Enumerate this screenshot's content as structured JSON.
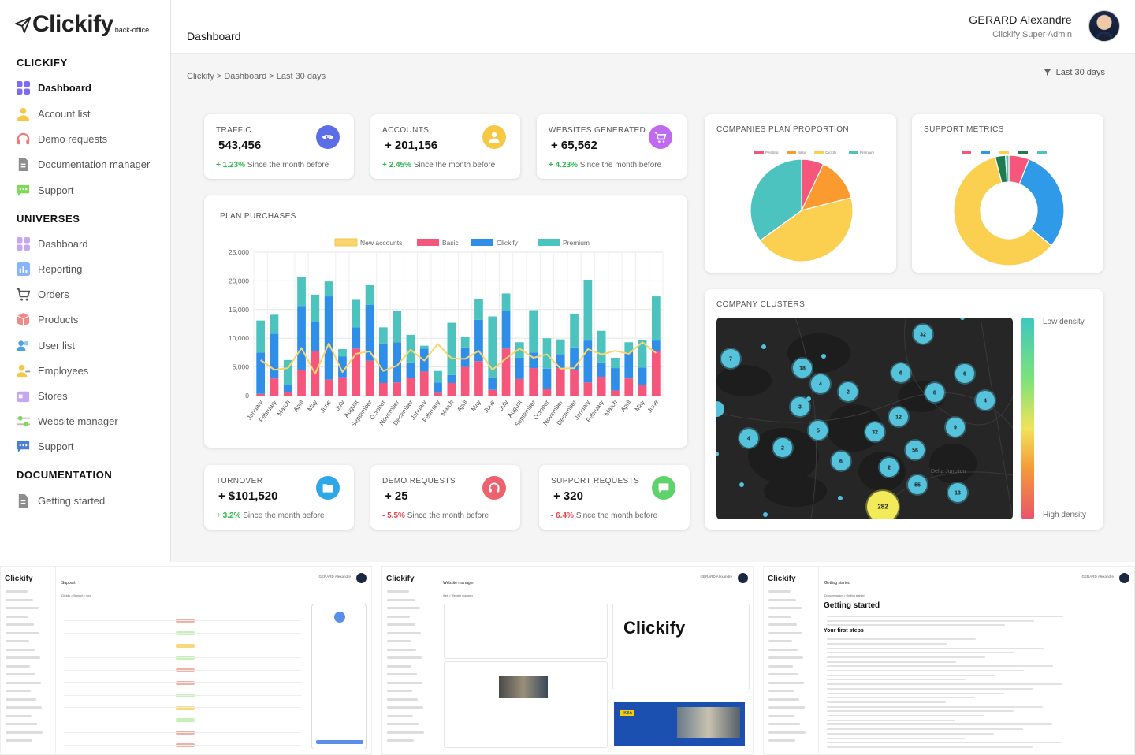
{
  "app": {
    "logo": "Clickify",
    "logo_sub": "back-office"
  },
  "header": {
    "page_title": "Dashboard",
    "user_name": "GERARD Alexandre",
    "user_role": "Clickify Super Admin"
  },
  "breadcrumb": "Clickify > Dashboard > Last 30 days",
  "filter_label": "Last 30 days",
  "sidebar": {
    "sections": [
      {
        "title": "CLICKIFY",
        "items": [
          {
            "label": "Dashboard",
            "icon": "grid-icon",
            "color": "#7c6df0"
          },
          {
            "label": "Account list",
            "icon": "user-icon",
            "color": "#f6c945"
          },
          {
            "label": "Demo requests",
            "icon": "headset-icon",
            "color": "#f07b7b"
          },
          {
            "label": "Documentation manager",
            "icon": "document-icon",
            "color": "#8d8d8d"
          },
          {
            "label": "Support",
            "icon": "chat-icon",
            "color": "#7ed957"
          }
        ]
      },
      {
        "title": "UNIVERSES",
        "items": [
          {
            "label": "Dashboard",
            "icon": "grid-icon",
            "color": "#c5a7f0"
          },
          {
            "label": "Reporting",
            "icon": "bar-chart-icon",
            "color": "#8ab4f8"
          },
          {
            "label": "Orders",
            "icon": "cart-icon",
            "color": "#555555"
          },
          {
            "label": "Products",
            "icon": "box-icon",
            "color": "#f08a8a"
          },
          {
            "label": "User list",
            "icon": "users-icon",
            "color": "#4aa3df"
          },
          {
            "label": "Employees",
            "icon": "employee-icon",
            "color": "#f6c945"
          },
          {
            "label": "Stores",
            "icon": "store-icon",
            "color": "#c5a7f0"
          },
          {
            "label": "Website manager",
            "icon": "sliders-icon",
            "color": "#7ed957"
          },
          {
            "label": "Support",
            "icon": "chat-icon",
            "color": "#4a7fd4"
          }
        ]
      },
      {
        "title": "DOCUMENTATION",
        "items": [
          {
            "label": "Getting started",
            "icon": "document-icon",
            "color": "#8d8d8d"
          }
        ]
      }
    ]
  },
  "kpis_top": [
    {
      "label": "TRAFFIC",
      "value": "543,456",
      "change": "+ 1.23%",
      "since": "Since the month before",
      "icon": "eye-icon",
      "color": "#5b6ee8",
      "trend": "up"
    },
    {
      "label": "ACCOUNTS",
      "value": "+ 201,156",
      "change": "+ 2.45%",
      "since": "Since the month before",
      "icon": "user-icon",
      "color": "#f6c945",
      "trend": "up"
    },
    {
      "label": "WEBSITES GENERATED",
      "value": "+ 65,562",
      "change": "+ 4.23%",
      "since": "Since the month before",
      "icon": "cart-icon",
      "color": "#c06af0",
      "trend": "up"
    }
  ],
  "kpis_bottom": [
    {
      "label": "TURNOVER",
      "value": "+ $101,520",
      "change": "+ 3.2%",
      "since": "Since the month before",
      "icon": "folder-icon",
      "color": "#2ca8e8",
      "trend": "up"
    },
    {
      "label": "DEMO REQUESTS",
      "value": "+ 25",
      "change": "- 5.5%",
      "since": "Since the month before",
      "icon": "headset-icon",
      "color": "#f0616e",
      "trend": "down"
    },
    {
      "label": "SUPPORT REQUESTS",
      "value": "+ 320",
      "change": "- 6.4%",
      "since": "Since the month before",
      "icon": "chat-icon",
      "color": "#5fd36b",
      "trend": "down"
    }
  ],
  "plan_card_title": "PLAN PURCHASES",
  "pie_card_title": "COMPANIES PLAN PROPORTION",
  "donut_card_title": "SUPPORT METRICS",
  "cluster_card_title": "COMPANY CLUSTERS",
  "density": {
    "low": "Low density",
    "high": "High density",
    "place": "Delta Junction"
  },
  "chart_data": [
    {
      "type": "bar",
      "title": "PLAN PURCHASES",
      "stacked": true,
      "ylim": [
        0,
        25000
      ],
      "yticks": [
        "25,000",
        "20,000",
        "15,000",
        "10,000",
        "5,000",
        "0"
      ],
      "legend_position": "top",
      "categories": [
        "January",
        "February",
        "March",
        "April",
        "May",
        "June",
        "July",
        "August",
        "September",
        "October",
        "November",
        "December",
        "January",
        "February",
        "March",
        "April",
        "May",
        "June",
        "July",
        "August",
        "September",
        "October",
        "November",
        "December",
        "January",
        "February",
        "March",
        "April",
        "May",
        "June"
      ],
      "series": [
        {
          "name": "Basic",
          "color": "#f7567c",
          "values": [
            300,
            3000,
            600,
            4500,
            7800,
            2800,
            3200,
            8200,
            6100,
            2200,
            2300,
            3100,
            4200,
            500,
            2200,
            5000,
            6000,
            1000,
            8200,
            2900,
            4800,
            1100,
            4800,
            4400,
            2300,
            3300,
            900,
            3000,
            1900,
            7700
          ]
        },
        {
          "name": "Clickify",
          "color": "#2f8fe8",
          "values": [
            7200,
            7800,
            1200,
            11100,
            5000,
            14500,
            3600,
            3700,
            9700,
            6900,
            7000,
            2700,
            4000,
            1800,
            1400,
            3400,
            7200,
            2200,
            6600,
            3700,
            2700,
            3600,
            2400,
            4000,
            7300,
            2500,
            3900,
            4600,
            3000,
            1900
          ]
        },
        {
          "name": "Premium",
          "color": "#4cc3bf",
          "values": [
            5600,
            3300,
            4400,
            5100,
            4800,
            2600,
            1300,
            4800,
            3500,
            2800,
            5500,
            4800,
            500,
            2000,
            9100,
            1900,
            3600,
            10600,
            3000,
            2700,
            7400,
            5300,
            2600,
            5900,
            10600,
            5500,
            1800,
            1700,
            4800,
            7700
          ]
        },
        {
          "name": "New accounts",
          "color": "#f9d56e",
          "type": "line",
          "values": [
            6200,
            4500,
            4800,
            8300,
            3800,
            9100,
            4100,
            7300,
            7700,
            4300,
            5200,
            8000,
            6100,
            9000,
            6500,
            6400,
            7800,
            4500,
            6500,
            8200,
            6600,
            7200,
            4700,
            4800,
            8100,
            7200,
            7800,
            7300,
            9300,
            7400
          ]
        }
      ]
    },
    {
      "type": "pie",
      "title": "COMPANIES PLAN PROPORTION",
      "legend_position": "top",
      "categories": [
        "Pending",
        "Basic",
        "Clickify",
        "Premium"
      ],
      "colors": [
        "#f7567c",
        "#fb9b2f",
        "#fbcf4f",
        "#4cc3bf"
      ],
      "values": [
        7,
        14,
        44,
        35
      ]
    },
    {
      "type": "pie",
      "donut": true,
      "title": "SUPPORT METRICS",
      "legend_position": "top",
      "categories": [
        "",
        "",
        "",
        "",
        ""
      ],
      "colors": [
        "#f7567c",
        "#2f9be8",
        "#fbcf4f",
        "#1f7a4e",
        "#4cc3bf"
      ],
      "values": [
        6,
        30,
        60,
        3,
        1
      ]
    }
  ],
  "clusters": [
    {
      "label": "7"
    },
    {
      "label": "18"
    },
    {
      "label": "4"
    },
    {
      "label": "2"
    },
    {
      "label": "6"
    },
    {
      "label": "32"
    },
    {
      "label": "6"
    },
    {
      "label": "8"
    },
    {
      "label": "4"
    },
    {
      "label": "3"
    },
    {
      "label": "5"
    },
    {
      "label": "32"
    },
    {
      "label": "12"
    },
    {
      "label": "9"
    },
    {
      "label": "4"
    },
    {
      "label": "2"
    },
    {
      "label": "6"
    },
    {
      "label": "56"
    },
    {
      "label": "2"
    },
    {
      "label": "55"
    },
    {
      "label": "13"
    },
    {
      "label": "282"
    }
  ],
  "thumbnails": [
    {
      "title": "Support",
      "subtitle": "Clickify > Support > Ikea"
    },
    {
      "title": "Website manager",
      "subtitle": "Ikea > Website manager"
    },
    {
      "title": "Getting started",
      "subtitle": "Documentation > Getting started"
    }
  ],
  "thumb_big": {
    "logo": "Clickify",
    "heading": "Getting started",
    "steps_title": "Your first steps",
    "preview": "IKEA"
  }
}
